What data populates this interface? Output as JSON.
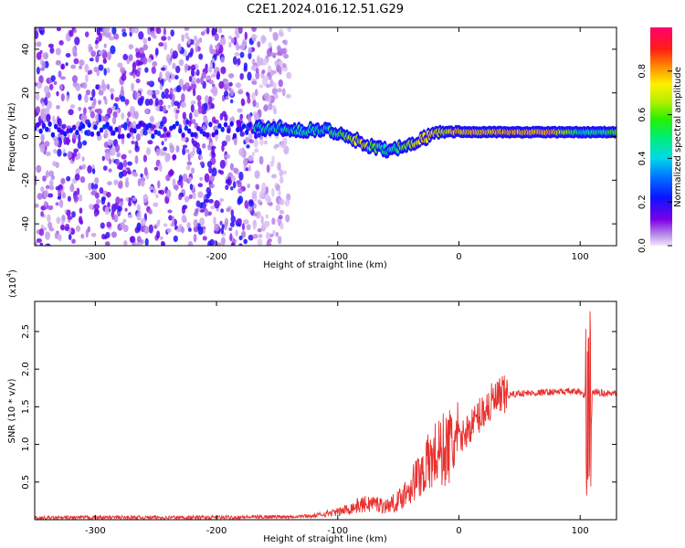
{
  "figure_title": "C2E1.2024.016.12.51.G29",
  "chart_data": [
    {
      "type": "heatmap",
      "xlabel": "Height of straight line (km)",
      "ylabel": "Frequency (Hz)",
      "xlim": [
        -350,
        130
      ],
      "ylim": [
        -50,
        50
      ],
      "xticks": [
        -300,
        -200,
        -100,
        0,
        100
      ],
      "xtick_labels": [
        "-300",
        "-200",
        "-100",
        "0",
        "100"
      ],
      "yticks": [
        -40,
        -20,
        0,
        20,
        40
      ],
      "ytick_labels": [
        "-40",
        "-20",
        "0",
        "20",
        "40"
      ],
      "colorbar": {
        "label": "Normalized spectral amplitude",
        "range": [
          0,
          1
        ],
        "ticks": [
          0.0,
          0.2,
          0.4,
          0.6,
          0.8
        ],
        "tick_labels": [
          "0.0",
          "0.2",
          "0.4",
          "0.6",
          "0.8"
        ],
        "colormap": "rainbow (white-purple-blue-cyan-green-yellow-red-magenta)"
      },
      "grid": false,
      "ridge_line": {
        "x": [
          -165,
          -150,
          -130,
          -110,
          -100,
          -90,
          -80,
          -70,
          -60,
          -50,
          -40,
          -30,
          -20,
          -10,
          0,
          20,
          50,
          80,
          100,
          130
        ],
        "freq": [
          4,
          4,
          3,
          3,
          2,
          0,
          -3,
          -5,
          -6,
          -5,
          -3,
          -1,
          1,
          2,
          2,
          2,
          2,
          2,
          2,
          2
        ],
        "amplitude": [
          0.5,
          0.5,
          0.5,
          0.5,
          0.6,
          0.7,
          0.8,
          0.6,
          0.5,
          0.6,
          0.7,
          0.8,
          0.8,
          0.8,
          0.85,
          0.85,
          0.85,
          0.85,
          0.5,
          0.6
        ]
      },
      "noise_region_x": [
        -350,
        -140
      ]
    },
    {
      "type": "line",
      "xlabel": "Height of straight line (km)",
      "ylabel": "SNR (10 * v/v)",
      "y_multiplier_label": "(x10",
      "y_multiplier_exp": "4",
      "xlim": [
        -350,
        130
      ],
      "ylim": [
        0,
        29000
      ],
      "xticks": [
        -300,
        -200,
        -100,
        0,
        100
      ],
      "xtick_labels": [
        "-300",
        "-200",
        "-100",
        "0",
        "100"
      ],
      "yticks": [
        5000,
        10000,
        15000,
        20000,
        25000
      ],
      "ytick_labels": [
        "0.5",
        "1.0",
        "1.5",
        "2.0",
        "2.5"
      ],
      "grid": false,
      "series": [
        {
          "color": "#e8312f",
          "x": [
            -350,
            -300,
            -250,
            -200,
            -150,
            -120,
            -110,
            -100,
            -90,
            -80,
            -70,
            -60,
            -50,
            -40,
            -30,
            -20,
            -10,
            0,
            10,
            20,
            30,
            40,
            50,
            60,
            70,
            80,
            90,
            100,
            104,
            106,
            108,
            110,
            120,
            130
          ],
          "y": [
            200,
            300,
            300,
            300,
            400,
            500,
            800,
            1000,
            1500,
            2000,
            2200,
            1800,
            2500,
            4500,
            6500,
            8500,
            9500,
            10500,
            12500,
            14500,
            15800,
            16500,
            16800,
            16800,
            16900,
            17000,
            17000,
            17000,
            16500,
            28000,
            5000,
            17000,
            16800,
            16700
          ]
        }
      ]
    }
  ]
}
